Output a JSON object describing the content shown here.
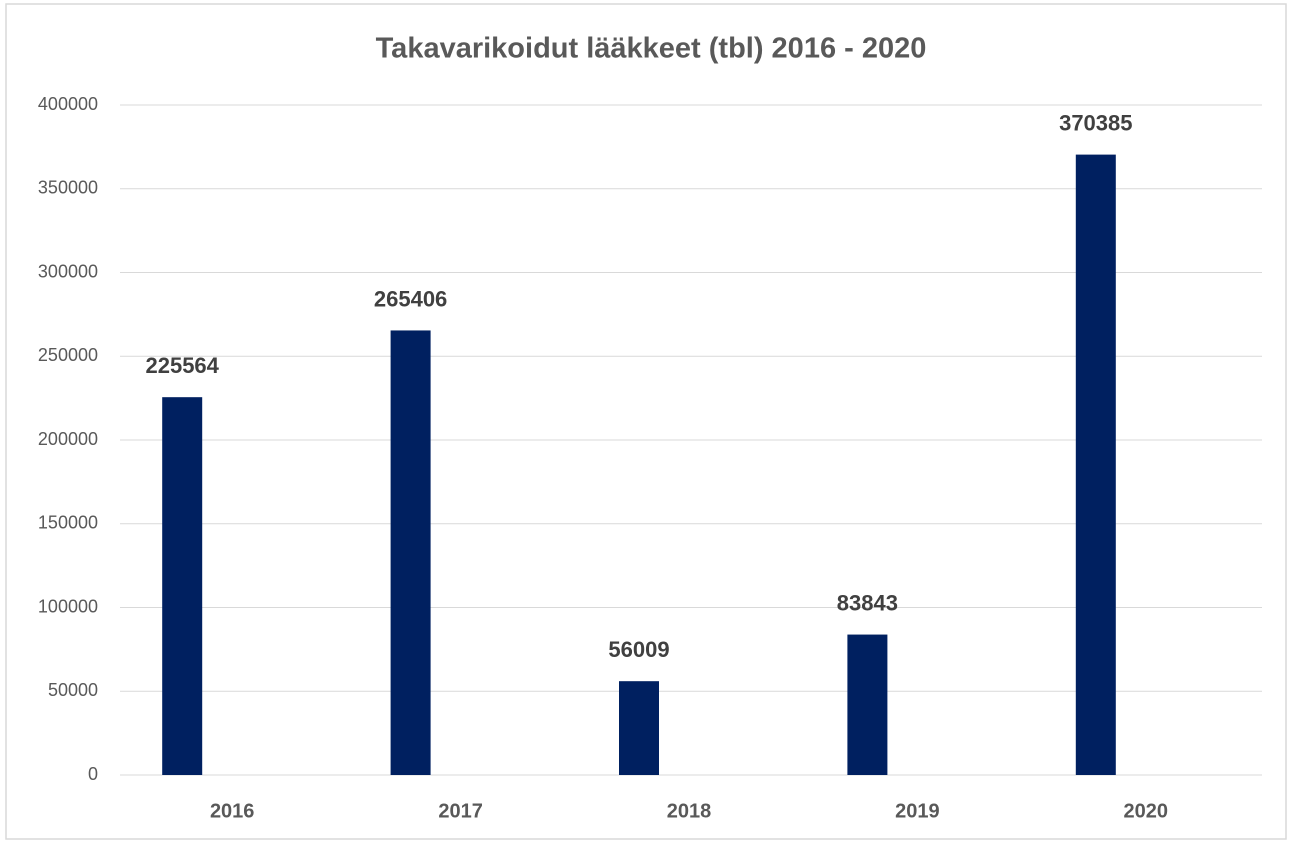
{
  "chart_data": {
    "type": "bar",
    "title": "Takavarikoidut lääkkeet (tbl) 2016 - 2020",
    "categories": [
      "2016",
      "2017",
      "2018",
      "2019",
      "2020"
    ],
    "values": [
      225564,
      265406,
      56009,
      83843,
      370385
    ],
    "color": "#002060",
    "ylim": [
      0,
      400000
    ],
    "yticks": [
      0,
      50000,
      100000,
      150000,
      200000,
      250000,
      300000,
      350000,
      400000
    ],
    "grid": true
  }
}
